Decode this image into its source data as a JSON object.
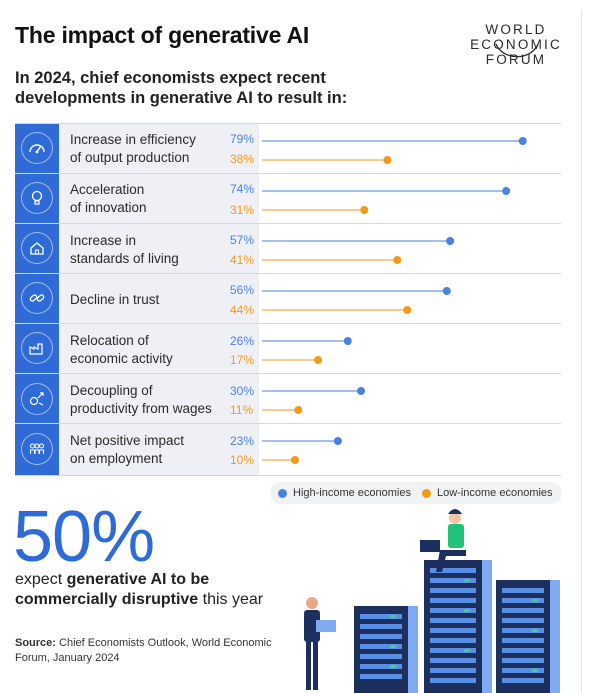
{
  "header": {
    "title": "The impact of generative AI",
    "logo_lines": [
      "WORLD",
      "ECONOMIC",
      "FORUM"
    ]
  },
  "subtitle": "In 2024, chief economists expect recent developments in generative AI to result in:",
  "chart_data": {
    "type": "dot-plot",
    "categories": [
      "Increase in efficiency of output production",
      "Acceleration of innovation",
      "Increase in standards of living",
      "Decline in trust",
      "Relocation of economic activity",
      "Decoupling of productivity from wages",
      "Net positive impact on employment"
    ],
    "series": [
      {
        "name": "High-income economies",
        "color": "#4a82e0",
        "values": [
          79,
          74,
          57,
          56,
          26,
          30,
          23
        ]
      },
      {
        "name": "Low-income economies",
        "color": "#f39a1b",
        "values": [
          38,
          31,
          41,
          44,
          17,
          11,
          10
        ]
      }
    ],
    "unit": "%",
    "xlim": [
      0,
      100
    ],
    "legend_position": "bottom-right"
  },
  "rows": [
    {
      "line1": "Increase in efficiency",
      "line2": "of output production",
      "high": "79%",
      "low": "38%",
      "icon": "gauge-icon"
    },
    {
      "line1": "Acceleration",
      "line2": "of innovation",
      "high": "74%",
      "low": "31%",
      "icon": "lightbulb-icon"
    },
    {
      "line1": "Increase in",
      "line2": "standards of living",
      "high": "57%",
      "low": "41%",
      "icon": "house-icon"
    },
    {
      "line1": "Decline in trust",
      "line2": "",
      "high": "56%",
      "low": "44%",
      "icon": "broken-link-icon"
    },
    {
      "line1": "Relocation of",
      "line2": "economic activity",
      "high": "26%",
      "low": "17%",
      "icon": "factory-icon"
    },
    {
      "line1": "Decoupling of",
      "line2": "productivity from wages",
      "high": "30%",
      "low": "11%",
      "icon": "money-arrows-icon"
    },
    {
      "line1": "Net positive impact",
      "line2": "on employment",
      "high": "23%",
      "low": "10%",
      "icon": "people-icon"
    }
  ],
  "legend": {
    "high_label": "High-income economies",
    "low_label": "Low-income economies"
  },
  "highlight": {
    "number": "50%",
    "text_before": "expect ",
    "text_bold": "generative AI to be commercially disruptive",
    "text_after": " this year"
  },
  "source": {
    "label": "Source:",
    "text": " Chief Economists Outlook, World Economic Forum, January 2024"
  },
  "colors": {
    "accent_blue": "#2f6bd6",
    "high": "#4a82e0",
    "low": "#f39a1b",
    "panel": "#eef0f5"
  }
}
